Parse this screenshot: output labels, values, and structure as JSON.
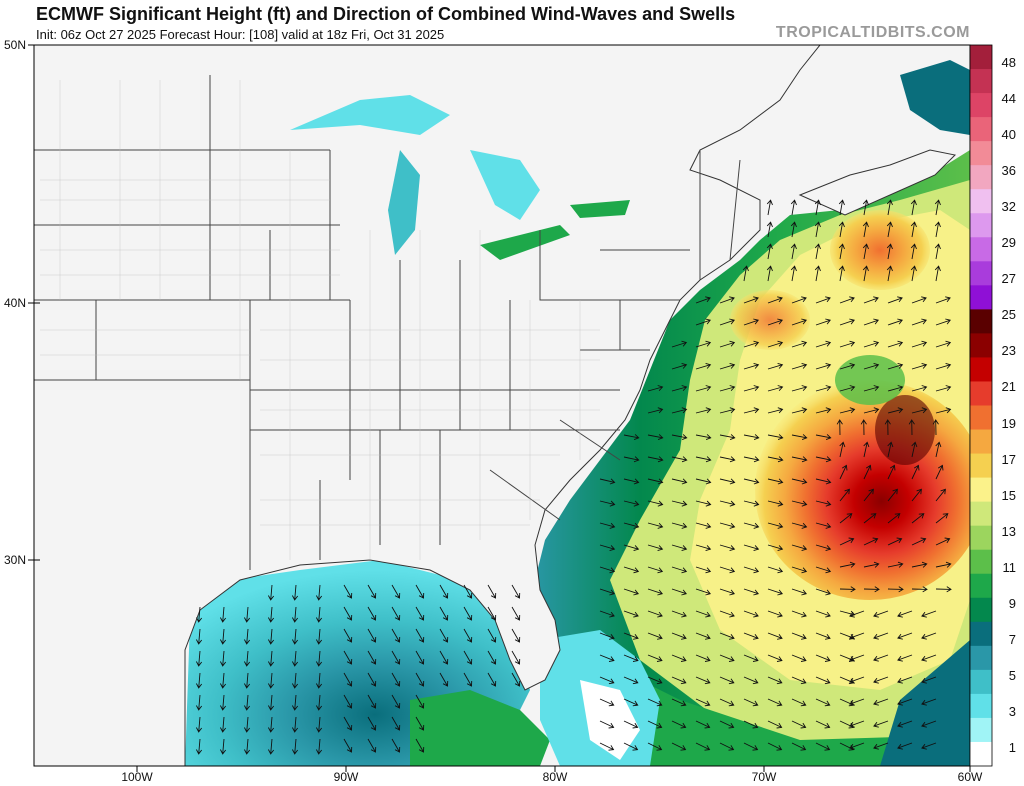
{
  "header": {
    "title": "ECMWF Significant Height (ft) and Direction of Combined Wind-Waves and Swells",
    "subtitle": "Init: 06z Oct 27 2025   Forecast Hour: [108]   valid at 18z Fri, Oct 31 2025",
    "brand": "TROPICALTIDBITS.COM"
  },
  "axes": {
    "lat_labels": [
      "50N",
      "40N",
      "30N"
    ],
    "lon_labels": [
      "100W",
      "90W",
      "80W",
      "70W",
      "60W"
    ]
  },
  "colorbar": {
    "ticks": [
      "48",
      "44",
      "40",
      "36",
      "32",
      "29",
      "27",
      "25",
      "23",
      "21",
      "19",
      "17",
      "15",
      "13",
      "11",
      "9",
      "7",
      "5",
      "3",
      "1"
    ],
    "colors": [
      "#a31f3b",
      "#c43253",
      "#dd4466",
      "#ea6479",
      "#f28b97",
      "#f2a7c0",
      "#f0c0f0",
      "#dd99ee",
      "#c86ae6",
      "#a93cdc",
      "#8f10d6",
      "#5a0000",
      "#8b0000",
      "#c40000",
      "#e63c2c",
      "#f07030",
      "#f5a840",
      "#f5d050",
      "#fbf28a",
      "#cfe87a",
      "#9cd55e",
      "#5cbf4a",
      "#1ea84a",
      "#03884d",
      "#0a6e7c",
      "#2a97a8",
      "#3fbfc8",
      "#60e0e8",
      "#a0f4f6",
      "#ffffff"
    ]
  },
  "layers": {
    "wave_color_scale": "significant-wave-height",
    "arrow_glyph": "direction-arrow"
  }
}
